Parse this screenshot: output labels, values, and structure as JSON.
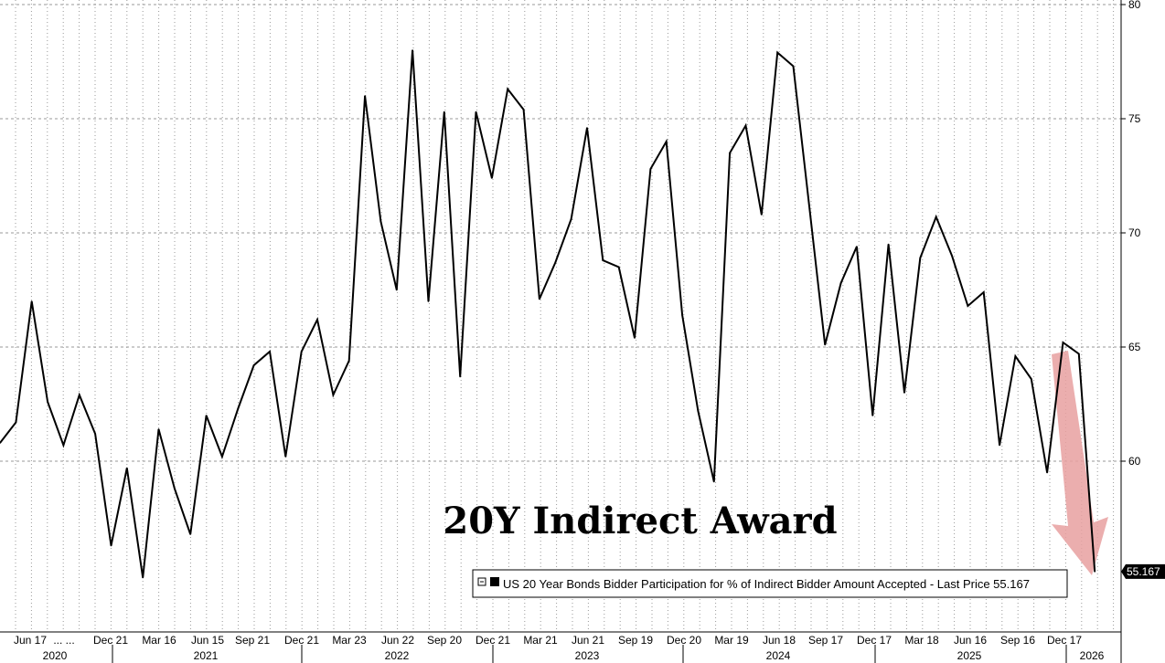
{
  "chart_data": {
    "type": "line",
    "title": "20Y Indirect Award",
    "legend": "US 20 Year Bonds Bidder Participation for % of Indirect Bidder Amount Accepted - Last Price 55.167",
    "last_value_label": "55.167",
    "ylim": [
      53,
      80
    ],
    "yticks": [
      60,
      65,
      70,
      75,
      80
    ],
    "grid": true,
    "legend_placement": "bottom-right",
    "series": [
      {
        "values": [
          60.8,
          61.7,
          67.0,
          62.6,
          60.7,
          62.9,
          61.2,
          56.3,
          59.7,
          54.9,
          61.4,
          58.8,
          56.8,
          62.0,
          60.2,
          62.3,
          64.2,
          64.8,
          60.2,
          64.8,
          66.2,
          62.9,
          64.4,
          76.0,
          70.5,
          67.5,
          78.0,
          67.0,
          75.3,
          63.7,
          75.3,
          72.4,
          76.3,
          75.4,
          67.1,
          68.7,
          70.6,
          74.6,
          68.8,
          68.5,
          65.4,
          72.8,
          74.0,
          66.4,
          62.2,
          59.1,
          73.5,
          74.7,
          70.8,
          77.9,
          77.3,
          71.2,
          65.1,
          67.8,
          69.4,
          62.0,
          69.5,
          63.0,
          68.9,
          70.7,
          69.0,
          66.8,
          67.4,
          60.7,
          64.6,
          63.6,
          59.5,
          65.2,
          64.7,
          55.167
        ]
      }
    ],
    "x_tick_labels": [
      "Jun 17",
      "... ...",
      "Dec 21",
      "Mar 16",
      "Jun 15",
      "Sep 21",
      "Dec 21",
      "Mar 23",
      "Jun 22",
      "Sep 20",
      "Dec 21",
      "Mar 21",
      "Jun 21",
      "Sep 19",
      "Dec 20",
      "Mar 19",
      "Jun 18",
      "Sep 17",
      "Dec 17",
      "Mar 18",
      "Jun 16",
      "Sep 16",
      "Dec 17"
    ],
    "years": [
      "2020",
      "2021",
      "2022",
      "2023",
      "2024",
      "2025",
      "2026"
    ]
  },
  "colors": {
    "line": "#000000",
    "arrow": "#e8a0a0",
    "label_bg": "#000000"
  }
}
